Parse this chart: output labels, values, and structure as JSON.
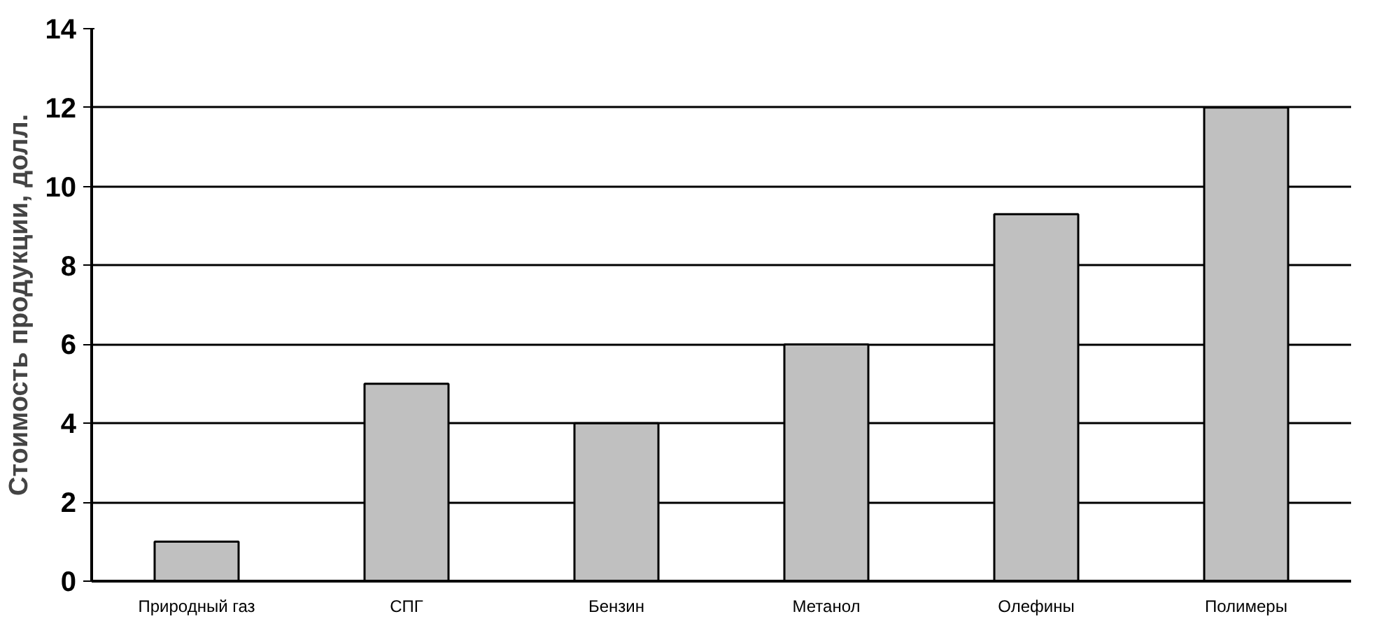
{
  "chart_data": {
    "type": "bar",
    "ylabel": "Стоимость продукции, долл.",
    "categories": [
      "Природный газ",
      "СПГ",
      "Бензин",
      "Метанол",
      "Олефины",
      "Полимеры"
    ],
    "values": [
      1,
      5,
      4,
      6,
      9.3,
      12
    ],
    "color": "#c0c0c0",
    "ylim": [
      0,
      14
    ],
    "yticks": [
      0,
      2,
      4,
      6,
      8,
      10,
      12,
      14
    ],
    "grid": "y"
  }
}
